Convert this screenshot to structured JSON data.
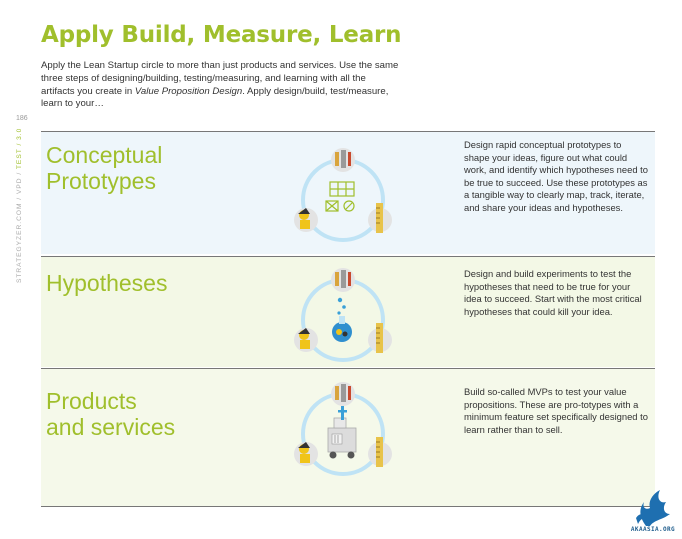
{
  "title": "Apply Build, Measure, Learn",
  "intro": {
    "part1": "Apply the Lean Startup circle to more than just products and services. Use the same three steps of designing/building, testing/measuring, and learning with all the artifacts you create in ",
    "emphasis": "Value Proposition Design",
    "part2": ". Apply design/build, test/measure, learn to your…"
  },
  "page_number": "186",
  "side_label": {
    "site": "STRATEGYZER.COM / VPD / ",
    "section": "TEST / 3.0"
  },
  "rows": [
    {
      "title_line1": "Conceptual",
      "title_line2": "Prototypes",
      "description": "Design rapid conceptual prototypes to shape your ideas, figure out what could work, and identify which hypotheses need to be true to succeed. Use these prototypes as a tangible way to clearly map, track, iterate, and share your ideas and hypotheses.",
      "center_icon": "prototype-sketch-icon"
    },
    {
      "title_line1": "Hypotheses",
      "title_line2": "",
      "description": "Design and build experiments to test the hypotheses that need to be true for your idea to succeed. Start with the most critical hypotheses that could kill your idea.",
      "center_icon": "flask-icon"
    },
    {
      "title_line1": "Products",
      "title_line2": "and services",
      "description": "Build so-called MVPs to test your value propositions. These are pro-totypes with a minimum feature set specifically designed to learn rather than to sell.",
      "center_icon": "mvp-machine-icon"
    }
  ],
  "logo": {
    "text": "AKAASIA.ORG"
  },
  "colors": {
    "accent_green": "#a0bf2c",
    "cycle_blue": "#bfe3f5",
    "icon_circle": "#e3e3e3",
    "band_blue": "#eef6fb",
    "band_green": "#f3f8e6"
  }
}
